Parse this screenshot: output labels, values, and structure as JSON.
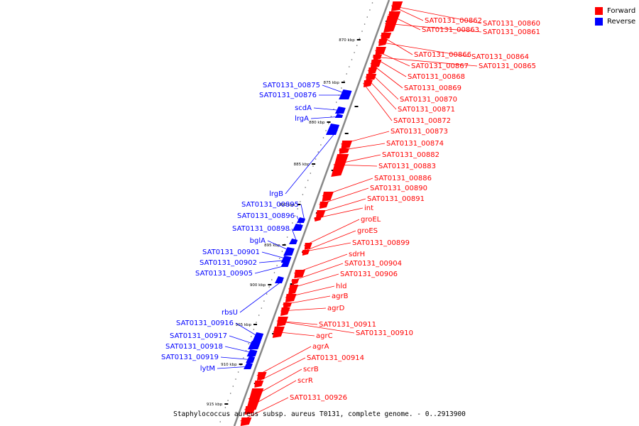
{
  "legend": {
    "items": [
      {
        "label": "Forward",
        "color": "#ff0000"
      },
      {
        "label": "Reverse",
        "color": "#0000ff"
      }
    ]
  },
  "caption": "Staphylococcus aureus subsp. aureus T0131, complete genome. - 0..2913900",
  "colors": {
    "forward": "#ff0000",
    "reverse": "#0000ff",
    "backbone": "#888888",
    "tick": "#000000"
  },
  "ticks": [
    "870 kbp",
    "875 kbp",
    "880 kbp",
    "885 kbp",
    "890 kbp",
    "895 kbp",
    "900 kbp",
    "905 kbp",
    "910 kbp",
    "915 kbp"
  ],
  "forward_labels": [
    "SAT0131_00862",
    "SAT0131_00860",
    "SAT0131_00863",
    "SAT0131_00861",
    "SAT0131_00866",
    "SAT0131_00864",
    "SAT0131_00867",
    "SAT0131_00865",
    "SAT0131_00868",
    "SAT0131_00869",
    "SAT0131_00870",
    "SAT0131_00871",
    "SAT0131_00872",
    "SAT0131_00873",
    "SAT0131_00874",
    "SAT0131_00882",
    "SAT0131_00883",
    "SAT0131_00886",
    "SAT0131_00890",
    "SAT0131_00891",
    "int",
    "groEL",
    "groES",
    "SAT0131_00899",
    "sdrH",
    "SAT0131_00904",
    "SAT0131_00906",
    "hld",
    "agrB",
    "agrD",
    "SAT0131_00911",
    "SAT0131_00910",
    "agrC",
    "agrA",
    "SAT0131_00914",
    "scrB",
    "scrR",
    "SAT0131_00926"
  ],
  "reverse_labels": [
    "SAT0131_00875",
    "SAT0131_00876",
    "scdA",
    "lrgA",
    "lrgB",
    "SAT0131_00895",
    "SAT0131_00896",
    "SAT0131_00898",
    "bglA",
    "SAT0131_00901",
    "SAT0131_00902",
    "SAT0131_00905",
    "rbsU",
    "SAT0131_00916",
    "SAT0131_00917",
    "SAT0131_00918",
    "SAT0131_00919",
    "lytM"
  ]
}
